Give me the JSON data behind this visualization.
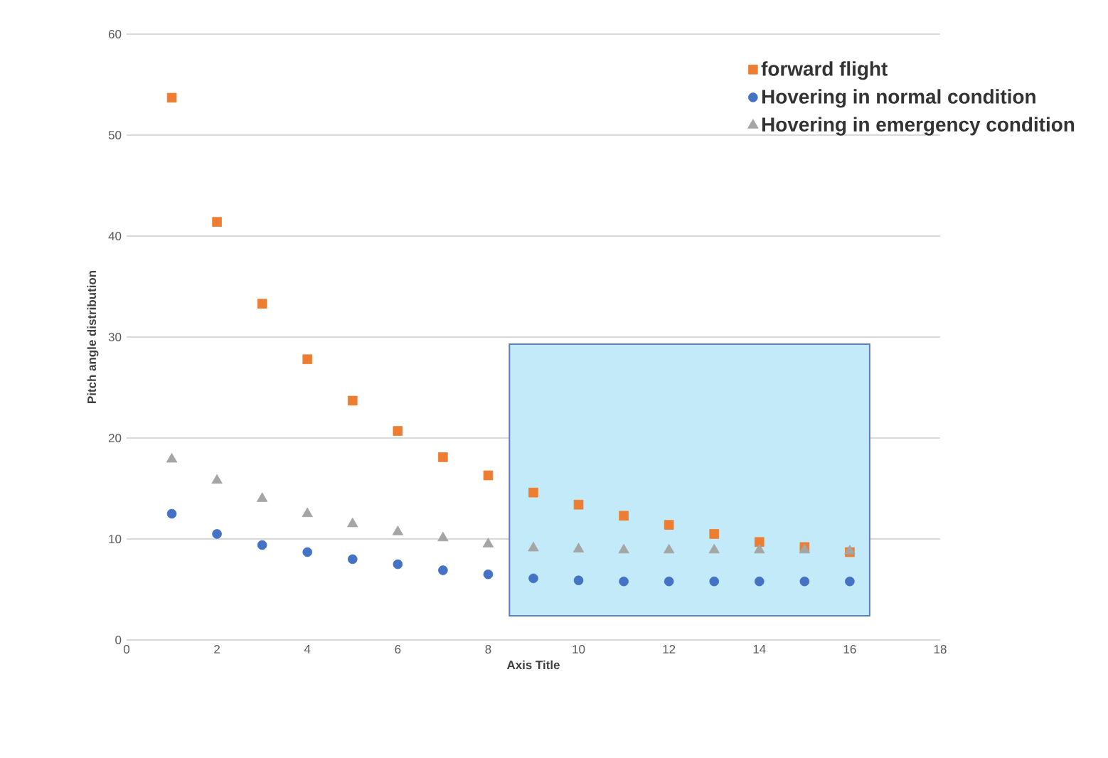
{
  "chart_data": {
    "type": "scatter",
    "xlabel": "Axis Title",
    "ylabel": "Pitch angle distribution",
    "x": [
      1,
      2,
      3,
      4,
      5,
      6,
      7,
      8,
      9,
      10,
      11,
      12,
      13,
      14,
      15,
      16
    ],
    "series": [
      {
        "name": "forward flight",
        "color": "#ed7d31",
        "marker": "square",
        "values": [
          53.7,
          41.4,
          33.3,
          27.8,
          23.7,
          20.7,
          18.1,
          16.3,
          14.6,
          13.4,
          12.3,
          11.4,
          10.5,
          9.7,
          9.2,
          8.7
        ]
      },
      {
        "name": "Hovering in normal condition",
        "color": "#4472c4",
        "marker": "circle",
        "values": [
          12.5,
          10.5,
          9.4,
          8.7,
          8.0,
          7.5,
          6.9,
          6.5,
          6.1,
          5.9,
          5.8,
          5.8,
          5.8,
          5.8,
          5.8,
          5.8
        ]
      },
      {
        "name": "Hovering in emergency condition",
        "color": "#a5a5a5",
        "marker": "triangle",
        "values": [
          17.9,
          15.8,
          14.0,
          12.5,
          11.5,
          10.7,
          10.1,
          9.5,
          9.1,
          9.0,
          8.9,
          8.9,
          8.9,
          8.9,
          8.9,
          8.8
        ]
      }
    ],
    "xlim": [
      0,
      18
    ],
    "xticks": [
      0,
      2,
      4,
      6,
      8,
      10,
      12,
      14,
      16,
      18
    ],
    "ylim": [
      0,
      60
    ],
    "yticks": [
      0,
      10,
      20,
      30,
      40,
      50,
      60
    ],
    "grid": "y",
    "legend": "top right"
  }
}
